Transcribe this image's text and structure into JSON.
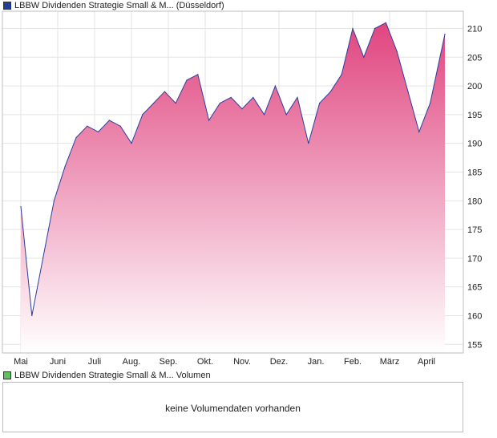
{
  "price_panel": {
    "legend_label": "LBBW Dividenden Strategie Small & M... (Düsseldorf)",
    "legend_color": "#1f3f99"
  },
  "volume_panel": {
    "legend_label": "LBBW Dividenden Strategie Small & M... Volumen",
    "legend_color": "#5cc45c",
    "message": "keine Volumendaten vorhanden"
  },
  "chart_data": {
    "type": "area",
    "title": "",
    "xlabel": "",
    "ylabel": "",
    "ylim": [
      153.5,
      213
    ],
    "yticks": [
      155,
      160,
      165,
      170,
      175,
      180,
      185,
      190,
      195,
      200,
      205,
      210
    ],
    "x_tick_labels": [
      "Mai",
      "Juni",
      "Juli",
      "Aug.",
      "Sep.",
      "Okt.",
      "Nov.",
      "Dez.",
      "Jan.",
      "Feb.",
      "März",
      "April"
    ],
    "grid": true,
    "line_color": "#2a3f9f",
    "fill_top_color": "#e0457f",
    "fill_bottom_color": "#ffffff",
    "series": [
      {
        "x": [
          0,
          0.3,
          0.6,
          0.9,
          1.2,
          1.5,
          1.8,
          2.1,
          2.4,
          2.7,
          3.0,
          3.3,
          3.6,
          3.9,
          4.2,
          4.5,
          4.8,
          5.1,
          5.4,
          5.7,
          6.0,
          6.3,
          6.6,
          6.9,
          7.2,
          7.5,
          7.8,
          8.1,
          8.4,
          8.7,
          9.0,
          9.3,
          9.6,
          9.9,
          10.2,
          10.5,
          10.8,
          11.1,
          11.5
        ],
        "y": [
          179,
          160,
          170,
          180,
          186,
          191,
          193,
          192,
          194,
          193,
          190,
          195,
          197,
          199,
          197,
          201,
          202,
          194,
          197,
          198,
          196,
          198,
          195,
          200,
          195,
          198,
          190,
          197,
          199,
          202,
          210,
          205,
          210,
          211,
          206,
          199,
          192,
          197,
          209
        ]
      }
    ]
  }
}
